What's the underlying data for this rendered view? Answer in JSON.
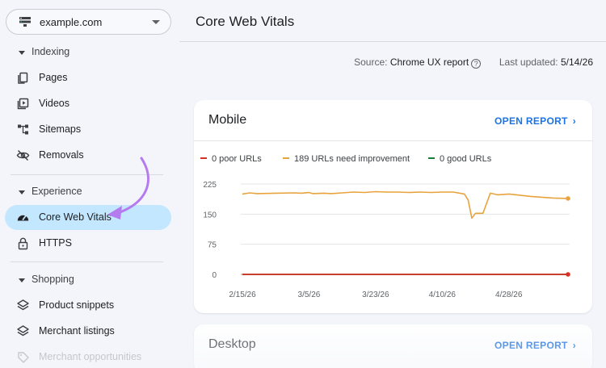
{
  "sidebar": {
    "property": {
      "label": "example.com",
      "icon": "property-icon"
    },
    "sections": [
      {
        "label": "Indexing"
      },
      {
        "label": "Experience"
      },
      {
        "label": "Shopping"
      }
    ],
    "items": [
      {
        "label": "Pages",
        "icon": "pages-icon"
      },
      {
        "label": "Videos",
        "icon": "video-icon"
      },
      {
        "label": "Sitemaps",
        "icon": "sitemap-icon"
      },
      {
        "label": "Removals",
        "icon": "eye-off-icon"
      },
      {
        "label": "Core Web Vitals",
        "icon": "speedometer-icon",
        "active": true
      },
      {
        "label": "HTTPS",
        "icon": "lock-icon"
      },
      {
        "label": "Product snippets",
        "icon": "layers-icon"
      },
      {
        "label": "Merchant listings",
        "icon": "layers-icon"
      },
      {
        "label": "Merchant opportunities",
        "icon": "tag-icon"
      }
    ]
  },
  "header": {
    "title": "Core Web Vitals"
  },
  "meta": {
    "source_label": "Source:",
    "source_value": "Chrome UX report",
    "updated_label": "Last updated:",
    "updated_value": "5/14/26"
  },
  "mobile_card": {
    "title": "Mobile",
    "open_report": "OPEN REPORT"
  },
  "desktop_card": {
    "title": "Desktop",
    "open_report": "OPEN REPORT"
  },
  "colors": {
    "poor": "#d93025",
    "needs_improvement": "#e8a33d",
    "good": "#188038",
    "accent": "#1a73e8",
    "active_bg": "#c2e7ff",
    "annotation_arrow": "#b57bee"
  },
  "chart_data": {
    "type": "line",
    "legend": [
      {
        "label": "0 poor URLs",
        "color": "#d93025"
      },
      {
        "label": "189 URLs need improvement",
        "color": "#e8a33d"
      },
      {
        "label": "0 good URLs",
        "color": "#188038"
      }
    ],
    "x_ticks": [
      "2/15/26",
      "3/5/26",
      "3/23/26",
      "4/10/26",
      "4/28/26"
    ],
    "y_ticks": [
      "0",
      "75",
      "150",
      "225"
    ],
    "ylim": [
      0,
      225
    ],
    "x_range": [
      "2/15/26",
      "5/14/26"
    ],
    "series": [
      {
        "name": "URLs need improvement",
        "color": "#e8a33d",
        "x": [
          "2/15/26",
          "2/17/26",
          "2/19/26",
          "2/24/26",
          "3/1/26",
          "3/3/26",
          "3/5/26",
          "3/6/26",
          "3/9/26",
          "3/11/26",
          "3/14/26",
          "3/17/26",
          "3/20/26",
          "3/23/26",
          "3/26/26",
          "3/29/26",
          "4/1/26",
          "4/4/26",
          "4/7/26",
          "4/10/26",
          "4/13/26",
          "4/16/26",
          "4/17/26",
          "4/18/26",
          "4/19/26",
          "4/20/26",
          "4/21/26",
          "4/23/26",
          "4/25/26",
          "4/28/26",
          "5/1/26",
          "5/4/26",
          "5/7/26",
          "5/10/26",
          "5/14/26"
        ],
        "values": [
          200,
          203,
          201,
          202,
          203,
          202,
          204,
          201,
          202,
          201,
          203,
          205,
          204,
          206,
          205,
          205,
          204,
          205,
          204,
          205,
          205,
          200,
          185,
          140,
          152,
          152,
          152,
          202,
          198,
          200,
          197,
          194,
          192,
          190,
          189
        ]
      },
      {
        "name": "Poor URLs",
        "color": "#d93025",
        "x": [
          "2/15/26",
          "5/14/26"
        ],
        "values": [
          0,
          0
        ]
      },
      {
        "name": "Good URLs",
        "color": "#188038",
        "x": [
          "2/15/26",
          "5/14/26"
        ],
        "values": [
          0,
          0
        ]
      }
    ]
  }
}
